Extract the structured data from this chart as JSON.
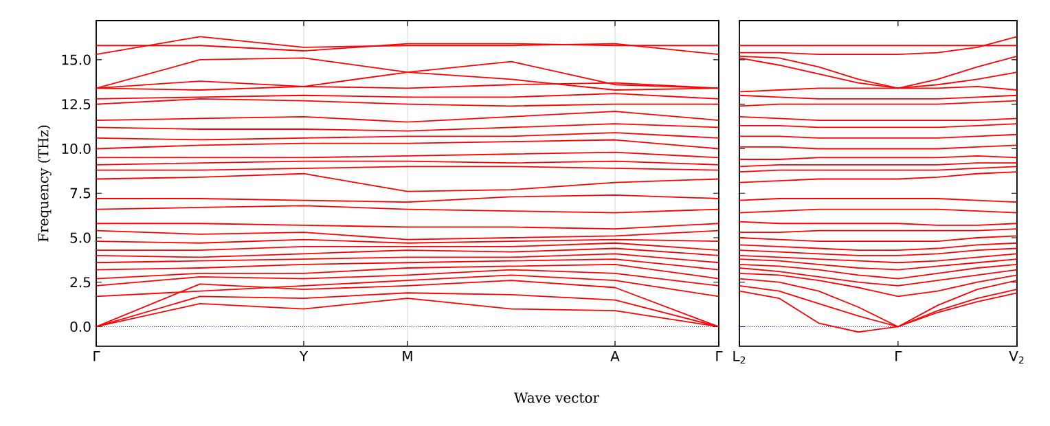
{
  "chart_data": [
    {
      "type": "line",
      "xlabel": "Wave vector",
      "ylabel": "Frequency (THz)",
      "grid": "x",
      "categories": [
        "Γ",
        null,
        "Y",
        "M",
        null,
        "A",
        "Γ"
      ],
      "ylim": [
        -1.1,
        17.2
      ],
      "yticks": [
        {
          "value": 0,
          "label": "0.0"
        },
        {
          "value": 2.5,
          "label": "2.5"
        },
        {
          "value": 5,
          "label": "5.0"
        },
        {
          "value": 7.5,
          "label": "7.5"
        },
        {
          "value": 10,
          "label": "10.0"
        },
        {
          "value": 12.5,
          "label": "12.5"
        },
        {
          "value": 15,
          "label": "15.0"
        }
      ],
      "ref_lines": [
        {
          "axis": "y",
          "value": 0,
          "color": "#0000ff",
          "line_style": "dotted"
        }
      ],
      "series": [
        {
          "color": "#ff0000",
          "values": [
            0,
            1.3,
            1.0,
            1.6,
            1.0,
            0.9,
            0
          ]
        },
        {
          "color": "#ff0000",
          "values": [
            0,
            1.7,
            1.6,
            1.9,
            1.8,
            1.5,
            0
          ]
        },
        {
          "color": "#ff0000",
          "values": [
            0,
            2.4,
            2.1,
            2.3,
            2.6,
            2.2,
            0
          ]
        },
        {
          "color": "#ff0000",
          "values": [
            1.7,
            2.0,
            2.3,
            2.6,
            2.9,
            2.6,
            1.7
          ]
        },
        {
          "color": "#ff0000",
          "values": [
            2.3,
            2.8,
            2.7,
            2.9,
            3.2,
            3.0,
            2.3
          ]
        },
        {
          "color": "#ff0000",
          "values": [
            2.7,
            3.0,
            3.0,
            3.3,
            3.4,
            3.5,
            2.7
          ]
        },
        {
          "color": "#ff0000",
          "values": [
            3.2,
            3.3,
            3.5,
            3.6,
            3.7,
            3.8,
            3.2
          ]
        },
        {
          "color": "#ff0000",
          "values": [
            3.6,
            3.7,
            3.8,
            3.9,
            3.9,
            4.1,
            3.6
          ]
        },
        {
          "color": "#ff0000",
          "values": [
            4.0,
            3.9,
            4.1,
            4.3,
            4.2,
            4.4,
            4.0
          ]
        },
        {
          "color": "#ff0000",
          "values": [
            4.3,
            4.3,
            4.5,
            4.5,
            4.5,
            4.7,
            4.3
          ]
        },
        {
          "color": "#ff0000",
          "values": [
            4.8,
            4.7,
            4.9,
            4.7,
            4.8,
            4.9,
            4.8
          ]
        },
        {
          "color": "#ff0000",
          "values": [
            5.4,
            5.2,
            5.3,
            4.9,
            5.0,
            5.1,
            5.4
          ]
        },
        {
          "color": "#ff0000",
          "values": [
            5.8,
            5.8,
            5.7,
            5.6,
            5.6,
            5.5,
            5.8
          ]
        },
        {
          "color": "#ff0000",
          "values": [
            6.6,
            6.7,
            6.8,
            6.6,
            6.5,
            6.4,
            6.6
          ]
        },
        {
          "color": "#ff0000",
          "values": [
            7.2,
            7.2,
            7.1,
            7.0,
            7.3,
            7.4,
            7.2
          ]
        },
        {
          "color": "#ff0000",
          "values": [
            8.3,
            8.4,
            8.6,
            7.6,
            7.7,
            8.1,
            8.3
          ]
        },
        {
          "color": "#ff0000",
          "values": [
            8.8,
            8.8,
            8.9,
            9.0,
            9.0,
            8.9,
            8.8
          ]
        },
        {
          "color": "#ff0000",
          "values": [
            9.1,
            9.2,
            9.3,
            9.3,
            9.2,
            9.3,
            9.1
          ]
        },
        {
          "color": "#ff0000",
          "values": [
            9.5,
            9.5,
            9.5,
            9.6,
            9.7,
            9.8,
            9.5
          ]
        },
        {
          "color": "#ff0000",
          "values": [
            10.0,
            10.2,
            10.3,
            10.3,
            10.4,
            10.5,
            10.0
          ]
        },
        {
          "color": "#ff0000",
          "values": [
            10.6,
            10.5,
            10.6,
            10.7,
            10.7,
            10.9,
            10.6
          ]
        },
        {
          "color": "#ff0000",
          "values": [
            11.2,
            11.1,
            11.1,
            11.0,
            11.2,
            11.4,
            11.2
          ]
        },
        {
          "color": "#ff0000",
          "values": [
            11.6,
            11.7,
            11.8,
            11.5,
            11.8,
            12.1,
            11.6
          ]
        },
        {
          "color": "#ff0000",
          "values": [
            12.5,
            12.8,
            12.7,
            12.5,
            12.4,
            12.5,
            12.5
          ]
        },
        {
          "color": "#ff0000",
          "values": [
            12.8,
            12.9,
            13.0,
            12.9,
            12.9,
            13.1,
            12.8
          ]
        },
        {
          "color": "#ff0000",
          "values": [
            13.4,
            13.3,
            13.5,
            13.4,
            13.6,
            13.7,
            13.4
          ]
        },
        {
          "color": "#ff0000",
          "values": [
            13.4,
            13.8,
            13.5,
            14.3,
            14.9,
            13.6,
            13.4
          ]
        },
        {
          "color": "#ff0000",
          "values": [
            13.4,
            15.0,
            15.1,
            14.3,
            13.9,
            13.3,
            13.4
          ]
        },
        {
          "color": "#ff0000",
          "values": [
            15.3,
            16.3,
            15.7,
            15.8,
            15.8,
            15.9,
            15.3
          ]
        },
        {
          "color": "#ff0000",
          "values": [
            15.8,
            15.8,
            15.5,
            15.9,
            15.9,
            15.8,
            15.8
          ]
        }
      ]
    },
    {
      "type": "line",
      "tick_labels": "x",
      "categories": [
        "L$_{2}$",
        null,
        null,
        null,
        "Γ",
        null,
        null,
        "V$_{2}$"
      ],
      "ylim": [
        -1.1,
        17.2
      ],
      "yticks": [
        {
          "value": 0,
          "label": null
        },
        {
          "value": 2.5,
          "label": null
        },
        {
          "value": 5,
          "label": null
        },
        {
          "value": 7.5,
          "label": null
        },
        {
          "value": 10,
          "label": null
        },
        {
          "value": 12.5,
          "label": null
        },
        {
          "value": 15,
          "label": null
        }
      ],
      "ref_lines": [
        {
          "axis": "y",
          "value": 0,
          "color": "#0000ff",
          "line_style": "dotted"
        }
      ],
      "series": [
        {
          "color": "#ff0000",
          "values": [
            2.0,
            1.6,
            0.2,
            -0.3,
            0,
            0.8,
            1.4,
            1.9
          ]
        },
        {
          "color": "#ff0000",
          "values": [
            2.3,
            2.0,
            1.3,
            0.6,
            0,
            0.9,
            1.6,
            2.1
          ]
        },
        {
          "color": "#ff0000",
          "values": [
            2.7,
            2.5,
            2.0,
            1.1,
            0,
            1.2,
            2.1,
            2.6
          ]
        },
        {
          "color": "#ff0000",
          "values": [
            3.0,
            2.9,
            2.6,
            2.2,
            1.7,
            2.0,
            2.5,
            2.9
          ]
        },
        {
          "color": "#ff0000",
          "values": [
            3.3,
            3.1,
            2.8,
            2.5,
            2.3,
            2.6,
            2.9,
            3.2
          ]
        },
        {
          "color": "#ff0000",
          "values": [
            3.5,
            3.4,
            3.2,
            2.9,
            2.7,
            3.0,
            3.3,
            3.5
          ]
        },
        {
          "color": "#ff0000",
          "values": [
            3.8,
            3.7,
            3.5,
            3.3,
            3.2,
            3.4,
            3.6,
            3.8
          ]
        },
        {
          "color": "#ff0000",
          "values": [
            4.0,
            3.9,
            3.8,
            3.7,
            3.6,
            3.7,
            3.9,
            4.1
          ]
        },
        {
          "color": "#ff0000",
          "values": [
            4.3,
            4.2,
            4.1,
            4.0,
            4.0,
            4.1,
            4.3,
            4.4
          ]
        },
        {
          "color": "#ff0000",
          "values": [
            4.6,
            4.5,
            4.4,
            4.3,
            4.3,
            4.4,
            4.6,
            4.7
          ]
        },
        {
          "color": "#ff0000",
          "values": [
            5.0,
            4.9,
            4.8,
            4.8,
            4.8,
            4.8,
            5.0,
            5.1
          ]
        },
        {
          "color": "#ff0000",
          "values": [
            5.3,
            5.3,
            5.4,
            5.4,
            5.4,
            5.4,
            5.4,
            5.5
          ]
        },
        {
          "color": "#ff0000",
          "values": [
            5.9,
            5.8,
            5.8,
            5.8,
            5.8,
            5.7,
            5.7,
            5.8
          ]
        },
        {
          "color": "#ff0000",
          "values": [
            6.4,
            6.5,
            6.6,
            6.6,
            6.6,
            6.6,
            6.5,
            6.4
          ]
        },
        {
          "color": "#ff0000",
          "values": [
            7.1,
            7.2,
            7.2,
            7.2,
            7.2,
            7.2,
            7.1,
            7.0
          ]
        },
        {
          "color": "#ff0000",
          "values": [
            8.1,
            8.2,
            8.3,
            8.3,
            8.3,
            8.4,
            8.6,
            8.7
          ]
        },
        {
          "color": "#ff0000",
          "values": [
            8.7,
            8.8,
            8.8,
            8.8,
            8.8,
            8.8,
            8.9,
            9.0
          ]
        },
        {
          "color": "#ff0000",
          "values": [
            9.0,
            9.1,
            9.1,
            9.1,
            9.1,
            9.1,
            9.2,
            9.2
          ]
        },
        {
          "color": "#ff0000",
          "values": [
            9.4,
            9.4,
            9.5,
            9.5,
            9.5,
            9.5,
            9.6,
            9.5
          ]
        },
        {
          "color": "#ff0000",
          "values": [
            10.1,
            10.1,
            10.0,
            10.0,
            10.0,
            10.0,
            10.1,
            10.2
          ]
        },
        {
          "color": "#ff0000",
          "values": [
            10.7,
            10.7,
            10.6,
            10.6,
            10.6,
            10.6,
            10.7,
            10.8
          ]
        },
        {
          "color": "#ff0000",
          "values": [
            11.3,
            11.3,
            11.2,
            11.2,
            11.2,
            11.2,
            11.3,
            11.4
          ]
        },
        {
          "color": "#ff0000",
          "values": [
            11.8,
            11.7,
            11.6,
            11.6,
            11.6,
            11.6,
            11.6,
            11.7
          ]
        },
        {
          "color": "#ff0000",
          "values": [
            12.4,
            12.5,
            12.5,
            12.5,
            12.5,
            12.5,
            12.6,
            12.7
          ]
        },
        {
          "color": "#ff0000",
          "values": [
            13.0,
            12.9,
            12.8,
            12.8,
            12.8,
            12.8,
            12.9,
            13.0
          ]
        },
        {
          "color": "#ff0000",
          "values": [
            13.2,
            13.3,
            13.4,
            13.4,
            13.4,
            13.4,
            13.5,
            13.3
          ]
        },
        {
          "color": "#ff0000",
          "values": [
            15.1,
            14.7,
            14.2,
            13.7,
            13.4,
            13.6,
            13.9,
            14.3
          ]
        },
        {
          "color": "#ff0000",
          "values": [
            15.2,
            15.1,
            14.6,
            13.9,
            13.4,
            13.9,
            14.6,
            15.2
          ]
        },
        {
          "color": "#ff0000",
          "values": [
            15.4,
            15.4,
            15.3,
            15.3,
            15.3,
            15.4,
            15.7,
            16.3
          ]
        },
        {
          "color": "#ff0000",
          "values": [
            15.8,
            15.8,
            15.8,
            15.8,
            15.8,
            15.8,
            15.8,
            15.8
          ]
        }
      ]
    }
  ]
}
